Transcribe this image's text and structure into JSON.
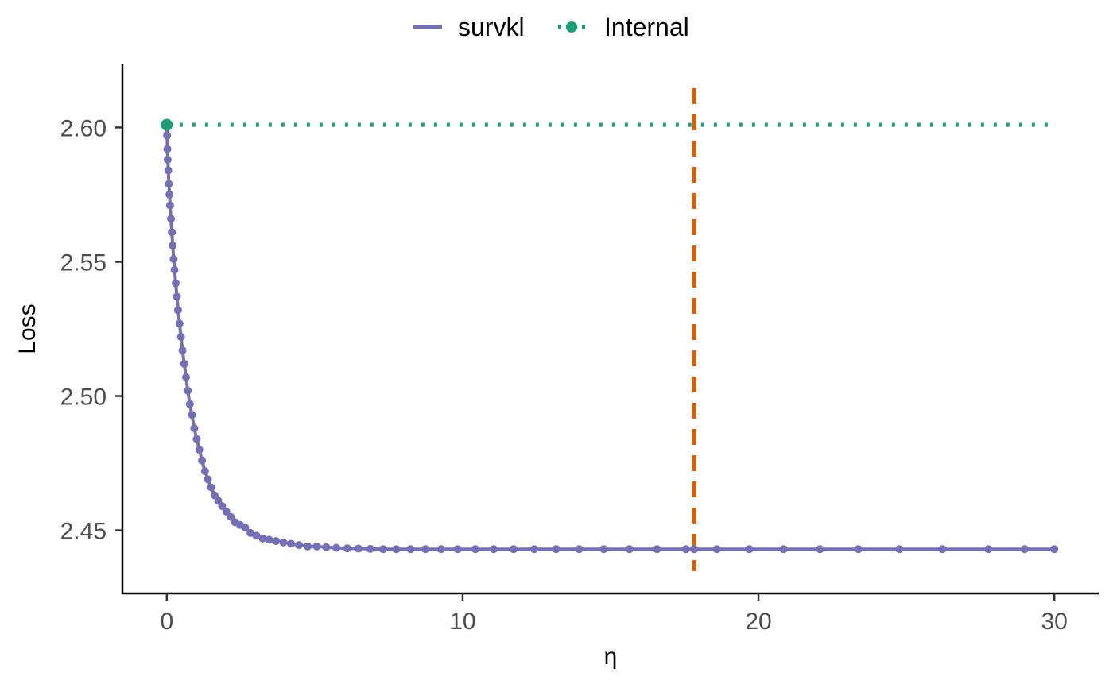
{
  "chart_data": {
    "type": "line",
    "xlabel": "η",
    "ylabel": "Loss",
    "xlim": [
      -1.5,
      31.5
    ],
    "ylim": [
      2.4265,
      2.6235
    ],
    "x_ticks": [
      0,
      10,
      20,
      30
    ],
    "x_tick_labels": [
      "0",
      "10",
      "20",
      "30"
    ],
    "y_ticks": [
      2.45,
      2.5,
      2.55,
      2.6
    ],
    "y_tick_labels": [
      "2.45",
      "2.50",
      "2.55",
      "2.60"
    ],
    "legend": {
      "position": "top",
      "entries": [
        {
          "label": "survkl",
          "style": "solid-line"
        },
        {
          "label": "Internal",
          "style": "dotted-line-with-point"
        }
      ]
    },
    "series": [
      {
        "name": "survkl",
        "style": "line-with-points",
        "color": "#7570b3",
        "x": [
          0,
          0.01,
          0.02,
          0.03,
          0.05,
          0.07,
          0.09,
          0.11,
          0.14,
          0.17,
          0.2,
          0.23,
          0.26,
          0.3,
          0.34,
          0.38,
          0.43,
          0.48,
          0.53,
          0.59,
          0.65,
          0.71,
          0.78,
          0.85,
          0.93,
          1.01,
          1.1,
          1.19,
          1.29,
          1.39,
          1.5,
          1.62,
          1.74,
          1.87,
          2.01,
          2.16,
          2.31,
          2.48,
          2.65,
          2.83,
          3.03,
          3.24,
          3.46,
          3.69,
          3.94,
          4.2,
          4.47,
          4.76,
          5.07,
          5.39,
          5.73,
          6.1,
          6.48,
          6.88,
          7.31,
          7.76,
          8.24,
          8.74,
          9.27,
          9.83,
          10.43,
          11.05,
          11.72,
          12.42,
          13.16,
          13.94,
          14.77,
          15.64,
          16.57,
          17.55,
          17.83,
          18.59,
          19.69,
          20.85,
          22.08,
          23.38,
          24.76,
          26.22,
          27.77,
          29.0,
          30.0
        ],
        "y": [
          2.601,
          2.597,
          2.592,
          2.588,
          2.584,
          2.579,
          2.575,
          2.571,
          2.566,
          2.561,
          2.556,
          2.551,
          2.547,
          2.542,
          2.537,
          2.532,
          2.527,
          2.522,
          2.517,
          2.512,
          2.507,
          2.502,
          2.497,
          2.493,
          2.488,
          2.484,
          2.48,
          2.476,
          2.472,
          2.469,
          2.466,
          2.463,
          2.461,
          2.459,
          2.457,
          2.455,
          2.453,
          2.452,
          2.451,
          2.449,
          2.448,
          2.447,
          2.4465,
          2.446,
          2.4455,
          2.445,
          2.4445,
          2.444,
          2.444,
          2.4437,
          2.4435,
          2.4433,
          2.4432,
          2.4431,
          2.443,
          2.443,
          2.443,
          2.443,
          2.443,
          2.443,
          2.443,
          2.443,
          2.443,
          2.443,
          2.443,
          2.443,
          2.443,
          2.443,
          2.443,
          2.443,
          2.443,
          2.443,
          2.443,
          2.443,
          2.443,
          2.443,
          2.443,
          2.443,
          2.443,
          2.443,
          2.443
        ]
      },
      {
        "name": "Internal",
        "style": "dotted-line",
        "color": "#1b9e77",
        "x": [
          0,
          30
        ],
        "y": [
          2.601,
          2.601
        ],
        "point_x": 0,
        "point_y": 2.601
      }
    ],
    "vline": {
      "x": 17.83,
      "style": "dashed",
      "color": "#d95f02"
    },
    "grid": false
  }
}
